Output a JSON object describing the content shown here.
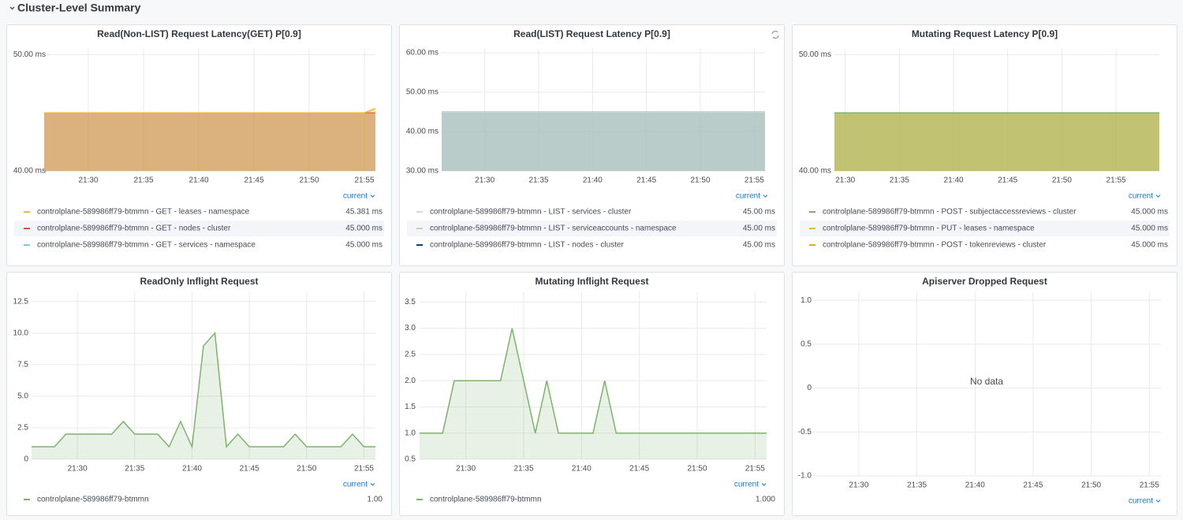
{
  "header": {
    "title": "Cluster-Level Summary"
  },
  "panels": [
    {
      "title": "Read(Non-LIST) Request Latency(GET) P[0.9]",
      "type": "line",
      "fill": 0.4,
      "ylim": [
        40,
        50.5
      ],
      "yticks": [
        {
          "value": 40,
          "label": "40.00 ms"
        },
        {
          "value": 50,
          "label": "50.00 ms"
        }
      ],
      "xlim": [
        "21:26",
        "21:56"
      ],
      "xticks": [
        "21:30",
        "21:35",
        "21:40",
        "21:45",
        "21:50",
        "21:55"
      ],
      "legend_header": "current",
      "series": [
        {
          "name": "controlplane-589986ff79-btmmn - GET - leases - namespace",
          "color": "#eab839",
          "x": [
            "21:26",
            "21:55",
            "21:56"
          ],
          "values": [
            45,
            45,
            45.381
          ],
          "current": "45.381 ms"
        },
        {
          "name": "controlplane-589986ff79-btmmn - GET - nodes - cluster",
          "color": "#e24d42",
          "x": [
            "21:26",
            "21:56"
          ],
          "values": [
            45,
            45
          ],
          "current": "45.000 ms"
        },
        {
          "name": "controlplane-589986ff79-btmmn - GET - services - namespace",
          "color": "#6ed0e0",
          "x": [
            "21:26",
            "21:56"
          ],
          "values": [
            45,
            45
          ],
          "current": "45.000 ms"
        }
      ]
    },
    {
      "title": "Read(LIST) Request Latency P[0.9]",
      "type": "line",
      "fill": 0.4,
      "ylim": [
        30,
        61
      ],
      "yticks": [
        {
          "value": 30,
          "label": "30.00 ms"
        },
        {
          "value": 40,
          "label": "40.00 ms"
        },
        {
          "value": 50,
          "label": "50.00 ms"
        },
        {
          "value": 60,
          "label": "60.00 ms"
        }
      ],
      "xlim": [
        "21:26",
        "21:56"
      ],
      "xticks": [
        "21:30",
        "21:35",
        "21:40",
        "21:45",
        "21:50",
        "21:55"
      ],
      "legend_header": "current",
      "series": [
        {
          "name": "controlplane-589986ff79-btmmn - LIST - services - cluster",
          "color": "#d8d9da",
          "x": [
            "21:26",
            "21:56"
          ],
          "values": [
            45,
            45
          ],
          "current": "45.00 ms"
        },
        {
          "name": "controlplane-589986ff79-btmmn - LIST - serviceaccounts - namespace",
          "color": "#b7dbab",
          "x": [
            "21:26",
            "21:56"
          ],
          "values": [
            45,
            45
          ],
          "current": "45.00 ms"
        },
        {
          "name": "controlplane-589986ff79-btmmn - LIST - nodes - cluster",
          "color": "#0a437c",
          "x": [
            "21:26",
            "21:56"
          ],
          "values": [
            45,
            45
          ],
          "current": "45.00 ms"
        }
      ]
    },
    {
      "title": "Mutating Request Latency P[0.9]",
      "type": "line",
      "fill": 0.4,
      "ylim": [
        40,
        50.5
      ],
      "yticks": [
        {
          "value": 40,
          "label": "40.00 ms"
        },
        {
          "value": 50,
          "label": "50.00 ms"
        }
      ],
      "xlim": [
        "21:29",
        "21:59"
      ],
      "xticks": [
        "21:30",
        "21:35",
        "21:40",
        "21:45",
        "21:50",
        "21:55"
      ],
      "legend_header": "current",
      "series": [
        {
          "name": "controlplane-589986ff79-btmmn - POST - subjectaccessreviews - cluster",
          "color": "#7eb26d",
          "x": [
            "21:29",
            "21:59"
          ],
          "values": [
            45,
            45
          ],
          "current": "45.000 ms"
        },
        {
          "name": "controlplane-589986ff79-btmmn - PUT - leases - namespace",
          "color": "#eab839",
          "x": [
            "21:29",
            "21:59"
          ],
          "values": [
            45,
            45
          ],
          "current": "45.000 ms"
        },
        {
          "name": "controlplane-589986ff79-btmmn - POST - tokenreviews - cluster",
          "color": "#e5ac0e",
          "x": [
            "21:29",
            "21:59"
          ],
          "values": [
            45,
            45
          ],
          "current": "45.000 ms"
        }
      ]
    },
    {
      "title": "ReadOnly Inflight Request",
      "type": "line",
      "fill": 0.18,
      "ylim": [
        0,
        13.3
      ],
      "yticks": [
        0,
        2.5,
        {
          "value": 5,
          "label": "5.0"
        },
        7.5,
        {
          "value": 10,
          "label": "10.0"
        },
        12.5
      ],
      "xlim": [
        "21:26",
        "21:56"
      ],
      "xticks": [
        "21:30",
        "21:35",
        "21:40",
        "21:45",
        "21:50",
        "21:55"
      ],
      "legend_header": "current",
      "series": [
        {
          "name": "controlplane-589986ff79-btmmn",
          "color": "#7eb26d",
          "x": [
            "21:26",
            "21:27",
            "21:28",
            "21:29",
            "21:30",
            "21:31",
            "21:32",
            "21:33",
            "21:34",
            "21:35",
            "21:36",
            "21:37",
            "21:38",
            "21:39",
            "21:40",
            "21:41",
            "21:42",
            "21:43",
            "21:44",
            "21:45",
            "21:46",
            "21:47",
            "21:48",
            "21:49",
            "21:50",
            "21:51",
            "21:52",
            "21:53",
            "21:54",
            "21:55",
            "21:56"
          ],
          "values": [
            1,
            1,
            1,
            2,
            2,
            2,
            2,
            2,
            3,
            2,
            2,
            2,
            1,
            3,
            1,
            9,
            10,
            1,
            2,
            1,
            1,
            1,
            1,
            2,
            1,
            1,
            1,
            1,
            2,
            1,
            1
          ],
          "current": "1.00"
        }
      ]
    },
    {
      "title": "Mutating Inflight Request",
      "type": "line",
      "fill": 0.18,
      "ylim": [
        0.5,
        3.7
      ],
      "yticks": [
        0.5,
        {
          "value": 1,
          "label": "1.0"
        },
        1.5,
        {
          "value": 2,
          "label": "2.0"
        },
        2.5,
        {
          "value": 3,
          "label": "3.0"
        },
        3.5
      ],
      "xlim": [
        "21:26",
        "21:56"
      ],
      "xticks": [
        "21:30",
        "21:35",
        "21:40",
        "21:45",
        "21:50",
        "21:55"
      ],
      "legend_header": "current",
      "series": [
        {
          "name": "controlplane-589986ff79-btmmn",
          "color": "#7eb26d",
          "x": [
            "21:26",
            "21:27",
            "21:28",
            "21:29",
            "21:30",
            "21:31",
            "21:32",
            "21:33",
            "21:34",
            "21:35",
            "21:36",
            "21:37",
            "21:38",
            "21:39",
            "21:40",
            "21:41",
            "21:42",
            "21:43",
            "21:44",
            "21:45",
            "21:46",
            "21:47",
            "21:48",
            "21:49",
            "21:50",
            "21:51",
            "21:52",
            "21:53",
            "21:54",
            "21:55",
            "21:56"
          ],
          "values": [
            1,
            1,
            1,
            2,
            2,
            2,
            2,
            2,
            3,
            2,
            1,
            2,
            1,
            1,
            1,
            1,
            2,
            1,
            1,
            1,
            1,
            1,
            1,
            1,
            1,
            1,
            1,
            1,
            1,
            1,
            1
          ],
          "current": "1.000"
        }
      ]
    },
    {
      "title": "Apiserver Dropped Request",
      "type": "line",
      "no_data": "No data",
      "ylim": [
        -1,
        1.1
      ],
      "yticks": [
        {
          "value": 1,
          "label": "1.0"
        },
        0.5,
        0,
        -0.5,
        {
          "value": -1,
          "label": "-1.0"
        }
      ],
      "xlim": [
        "21:26",
        "21:56"
      ],
      "xticks": [
        "21:30",
        "21:35",
        "21:40",
        "21:45",
        "21:50",
        "21:55"
      ],
      "legend_header": "current",
      "series": []
    }
  ]
}
